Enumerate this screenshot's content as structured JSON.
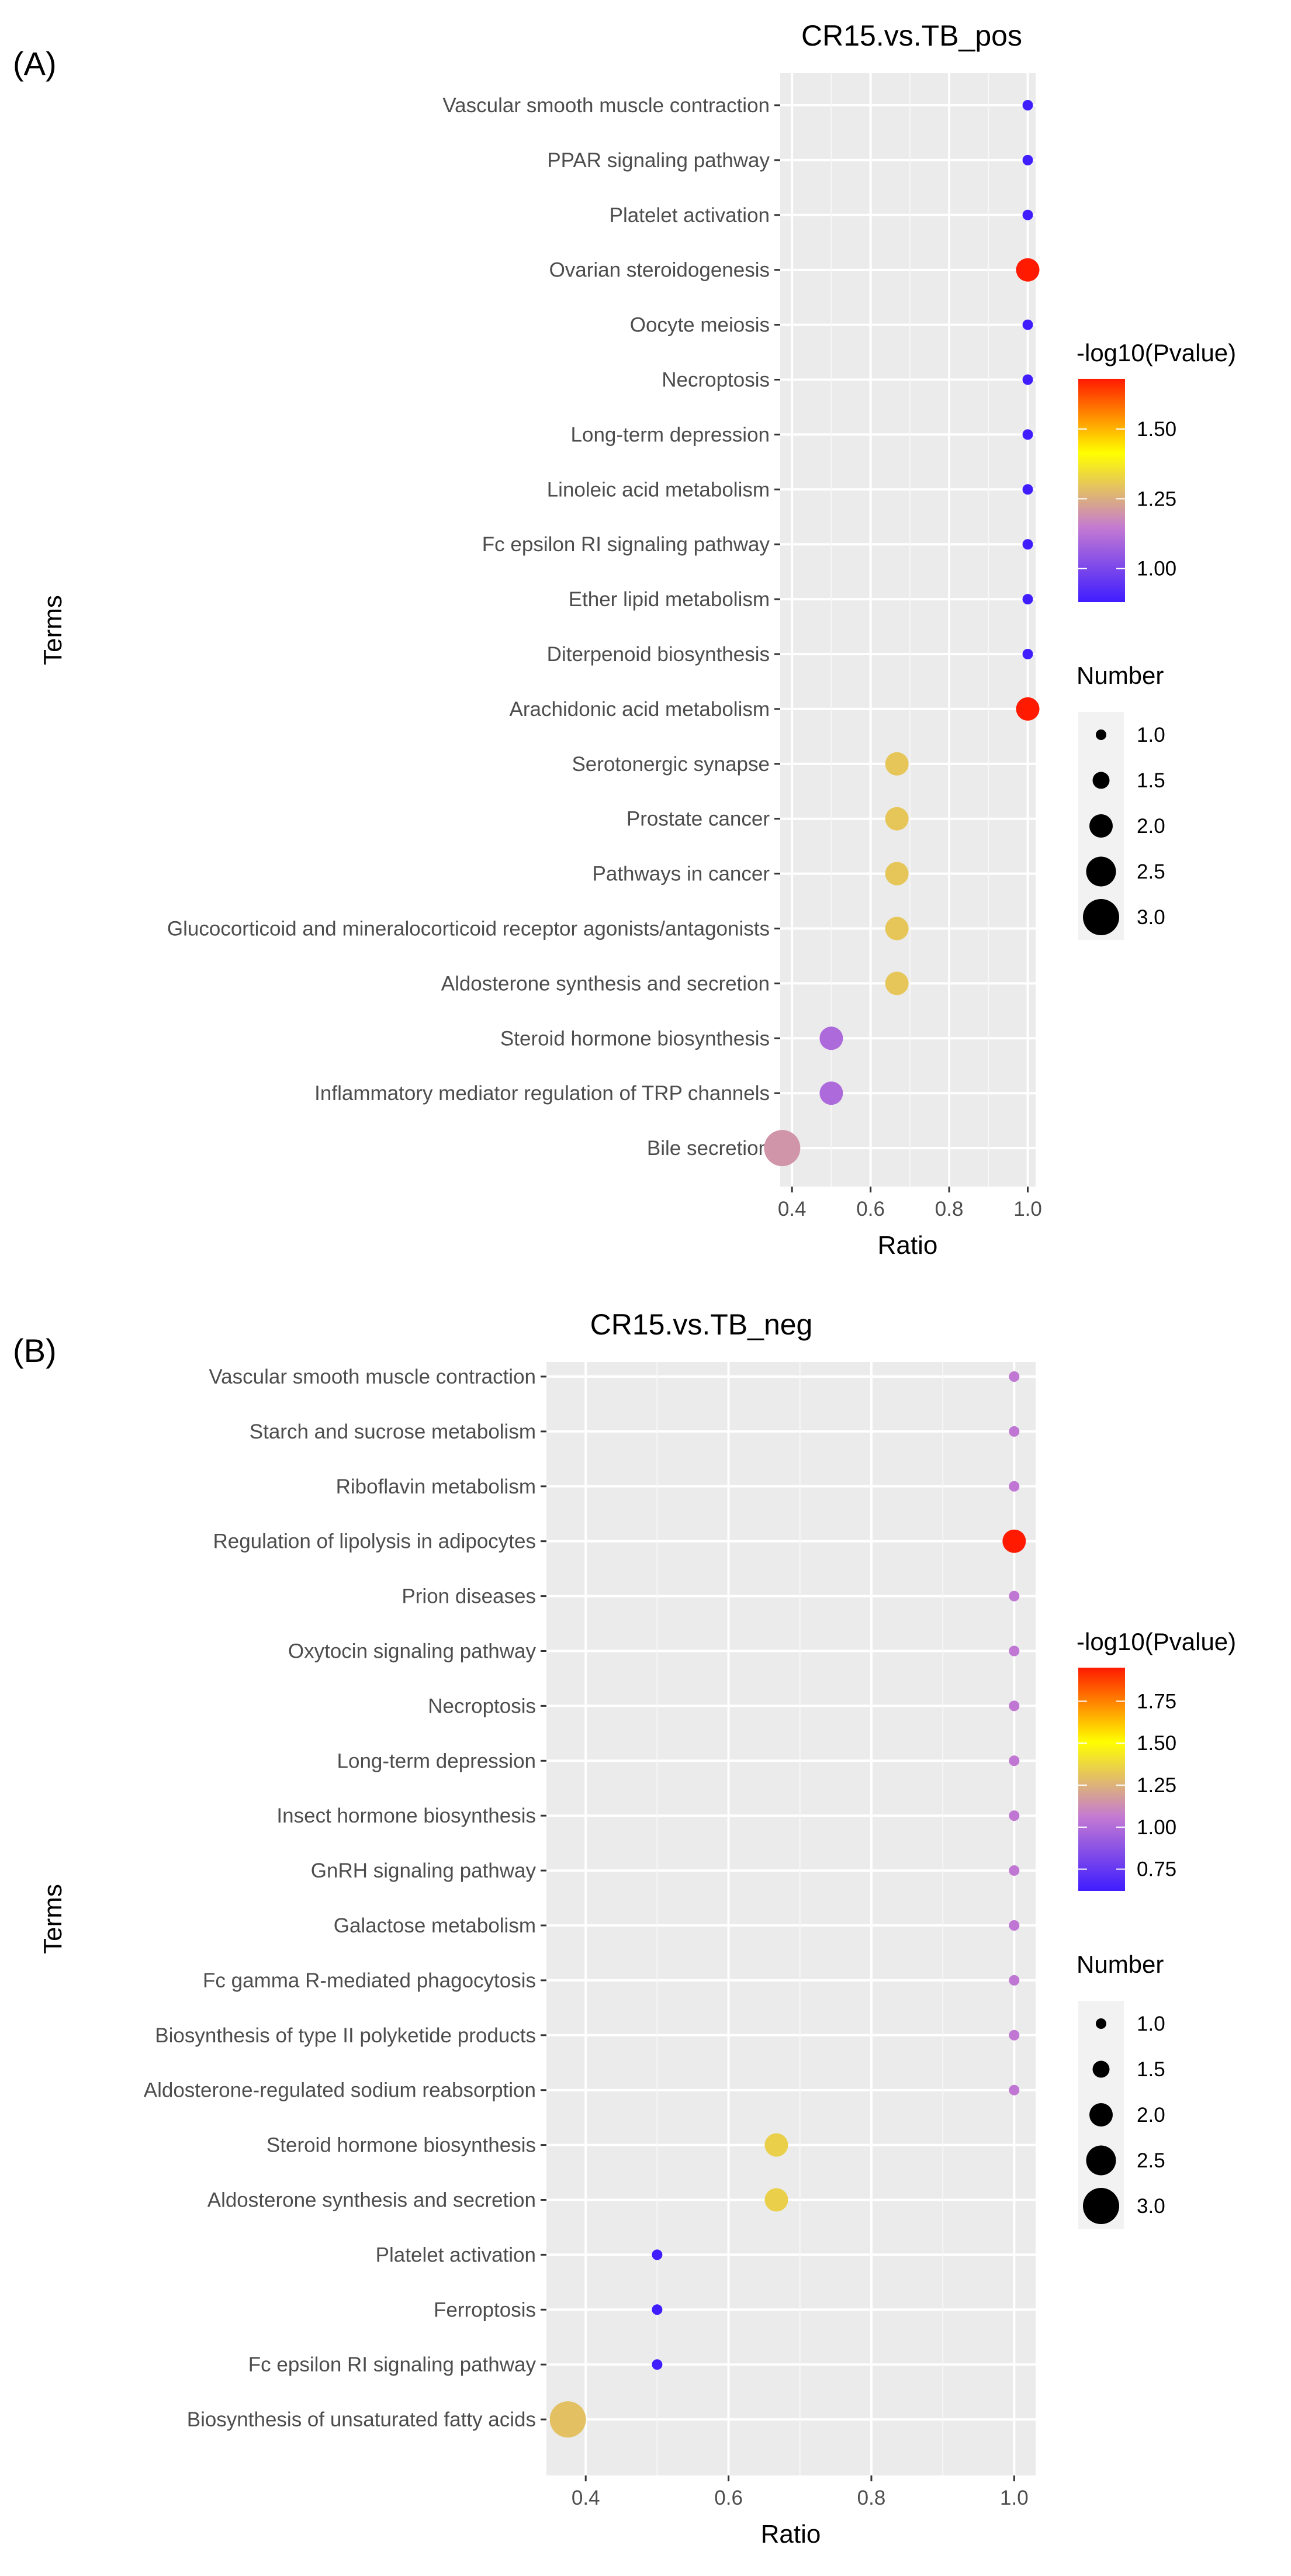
{
  "chart_data": [
    {
      "type": "scatter",
      "panel_label": "(A)",
      "title": "CR15.vs.TB_pos",
      "xlabel": "Ratio",
      "ylabel": "Terms",
      "xlim": [
        0.37,
        1.02
      ],
      "xticks": [
        0.4,
        0.6,
        0.8,
        1.0
      ],
      "xtick_labels": [
        "0.4",
        "0.6",
        "0.8",
        "1.0"
      ],
      "grid": true,
      "terms": [
        "Vascular smooth muscle contraction",
        "PPAR signaling pathway",
        "Platelet activation",
        "Ovarian steroidogenesis",
        "Oocyte meiosis",
        "Necroptosis",
        "Long-term depression",
        "Linoleic acid metabolism",
        "Fc epsilon RI signaling pathway",
        "Ether lipid metabolism",
        "Diterpenoid biosynthesis",
        "Arachidonic acid metabolism",
        "Serotonergic synapse",
        "Prostate cancer",
        "Pathways in cancer",
        "Glucocorticoid and mineralocorticoid receptor agonists/antagonists",
        "Aldosterone synthesis and secretion",
        "Steroid hormone biosynthesis",
        "Inflammatory mediator regulation of TRP channels",
        "Bile secretion"
      ],
      "ratio": [
        1.0,
        1.0,
        1.0,
        1.0,
        1.0,
        1.0,
        1.0,
        1.0,
        1.0,
        1.0,
        1.0,
        1.0,
        0.667,
        0.667,
        0.667,
        0.667,
        0.667,
        0.5,
        0.5,
        0.375
      ],
      "number": [
        1,
        1,
        1,
        2,
        1,
        1,
        1,
        1,
        1,
        1,
        1,
        2,
        2,
        2,
        2,
        2,
        2,
        2,
        2,
        3
      ],
      "neglog10p": [
        0.88,
        0.88,
        0.88,
        1.68,
        0.88,
        0.88,
        0.88,
        0.88,
        0.88,
        0.88,
        0.88,
        1.68,
        1.3,
        1.3,
        1.3,
        1.3,
        1.3,
        1.1,
        1.1,
        1.2
      ],
      "color_legend": {
        "title": "-log10(Pvalue)",
        "range": [
          0.88,
          1.68
        ],
        "ticks": [
          1.0,
          1.25,
          1.5
        ],
        "tick_labels": [
          "1.00",
          "1.25",
          "1.50"
        ],
        "colors": [
          "#3f1dff",
          "#c47ad2",
          "#ffff00",
          "#ff1a00"
        ]
      },
      "size_legend": {
        "title": "Number",
        "values": [
          1.0,
          1.5,
          2.0,
          2.5,
          3.0
        ],
        "labels": [
          "1.0",
          "1.5",
          "2.0",
          "2.5",
          "3.0"
        ]
      }
    },
    {
      "type": "scatter",
      "panel_label": "(B)",
      "title": "CR15.vs.TB_neg",
      "xlabel": "Ratio",
      "ylabel": "Terms",
      "xlim": [
        0.345,
        1.03
      ],
      "xticks": [
        0.4,
        0.6,
        0.8,
        1.0
      ],
      "xtick_labels": [
        "0.4",
        "0.6",
        "0.8",
        "1.0"
      ],
      "grid": true,
      "terms": [
        "Vascular smooth muscle contraction",
        "Starch and sucrose metabolism",
        "Riboflavin metabolism",
        "Regulation of lipolysis in adipocytes",
        "Prion diseases",
        "Oxytocin signaling pathway",
        "Necroptosis",
        "Long-term depression",
        "Insect hormone biosynthesis",
        "GnRH signaling pathway",
        "Galactose metabolism",
        "Fc gamma R-mediated phagocytosis",
        "Biosynthesis of type II polyketide products",
        "Aldosterone-regulated sodium reabsorption",
        "Steroid hormone biosynthesis",
        "Aldosterone synthesis and secretion",
        "Platelet activation",
        "Ferroptosis",
        "Fc epsilon RI signaling pathway",
        "Biosynthesis of unsaturated fatty acids"
      ],
      "ratio": [
        1.0,
        1.0,
        1.0,
        1.0,
        1.0,
        1.0,
        1.0,
        1.0,
        1.0,
        1.0,
        1.0,
        1.0,
        1.0,
        1.0,
        0.667,
        0.667,
        0.5,
        0.5,
        0.5,
        0.375
      ],
      "number": [
        1,
        1,
        1,
        2,
        1,
        1,
        1,
        1,
        1,
        1,
        1,
        1,
        1,
        1,
        2,
        2,
        1,
        1,
        1,
        3
      ],
      "neglog10p": [
        1.05,
        1.05,
        1.05,
        1.95,
        1.05,
        1.05,
        1.05,
        1.05,
        1.05,
        1.05,
        1.05,
        1.05,
        1.05,
        1.05,
        1.35,
        1.35,
        0.62,
        0.62,
        0.62,
        1.3
      ],
      "color_legend": {
        "title": "-log10(Pvalue)",
        "range": [
          0.62,
          1.95
        ],
        "ticks": [
          0.75,
          1.0,
          1.25,
          1.5,
          1.75
        ],
        "tick_labels": [
          "0.75",
          "1.00",
          "1.25",
          "1.50",
          "1.75"
        ],
        "colors": [
          "#3f1dff",
          "#c47ad2",
          "#ffff00",
          "#ff1a00"
        ]
      },
      "size_legend": {
        "title": "Number",
        "values": [
          1.0,
          1.5,
          2.0,
          2.5,
          3.0
        ],
        "labels": [
          "1.0",
          "1.5",
          "2.0",
          "2.5",
          "3.0"
        ]
      }
    }
  ]
}
